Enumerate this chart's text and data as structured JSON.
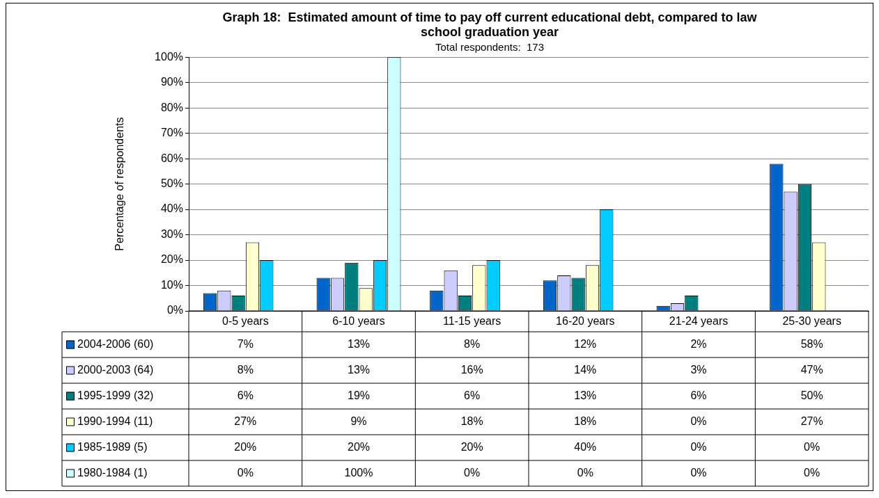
{
  "chart_data": {
    "type": "bar",
    "title": "Graph 18:  Estimated amount of time to pay off current educational debt, compared to law school graduation year",
    "subtitle": "Total respondents:  173",
    "ylabel": "Percentage of respondents",
    "categories": [
      "0-5 years",
      "6-10 years",
      "11-15 years",
      "16-20 years",
      "21-24 years",
      "25-30 years"
    ],
    "series": [
      {
        "name": "2004-2006 (60)",
        "color": "#0066cc",
        "values": [
          7,
          13,
          8,
          12,
          2,
          58
        ],
        "value_labels": [
          "7%",
          "13%",
          "8%",
          "12%",
          "2%",
          "58%"
        ]
      },
      {
        "name": "2000-2003 (64)",
        "color": "#ccccff",
        "values": [
          8,
          13,
          16,
          14,
          3,
          47
        ],
        "value_labels": [
          "8%",
          "13%",
          "16%",
          "14%",
          "3%",
          "47%"
        ]
      },
      {
        "name": "1995-1999 (32)",
        "color": "#007f7f",
        "values": [
          6,
          19,
          6,
          13,
          6,
          50
        ],
        "value_labels": [
          "6%",
          "19%",
          "6%",
          "13%",
          "6%",
          "50%"
        ]
      },
      {
        "name": "1990-1994 (11)",
        "color": "#ffffcc",
        "values": [
          27,
          9,
          18,
          18,
          0,
          27
        ],
        "value_labels": [
          "27%",
          "9%",
          "18%",
          "18%",
          "0%",
          "27%"
        ]
      },
      {
        "name": "1985-1989 (5)",
        "color": "#00ccff",
        "values": [
          20,
          20,
          20,
          40,
          0,
          0
        ],
        "value_labels": [
          "20%",
          "20%",
          "20%",
          "40%",
          "0%",
          "0%"
        ]
      },
      {
        "name": "1980-1984 (1)",
        "color": "#ccffff",
        "values": [
          0,
          100,
          0,
          0,
          0,
          0
        ],
        "value_labels": [
          "0%",
          "100%",
          "0%",
          "0%",
          "0%",
          "0%"
        ]
      }
    ],
    "ylim": [
      0,
      100
    ],
    "yticks": [
      {
        "value": 0,
        "label": "0%"
      },
      {
        "value": 10,
        "label": "10%"
      },
      {
        "value": 20,
        "label": "20%"
      },
      {
        "value": 30,
        "label": "30%"
      },
      {
        "value": 40,
        "label": "40%"
      },
      {
        "value": 50,
        "label": "50%"
      },
      {
        "value": 60,
        "label": "60%"
      },
      {
        "value": 70,
        "label": "70%"
      },
      {
        "value": 80,
        "label": "80%"
      },
      {
        "value": 90,
        "label": "90%"
      },
      {
        "value": 100,
        "label": "100%"
      }
    ],
    "grid": "y",
    "legend": "bottom"
  }
}
